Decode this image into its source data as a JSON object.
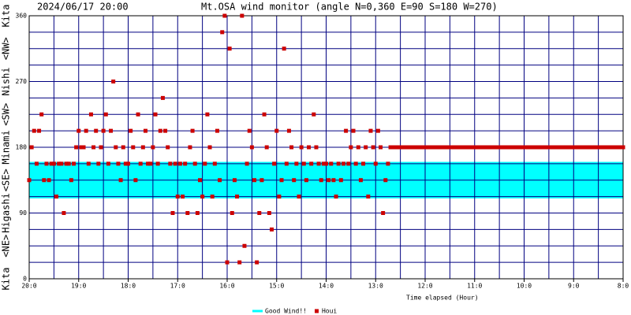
{
  "header": {
    "timestamp": "2024/06/17 20:00"
  },
  "chart_data": {
    "type": "scatter",
    "title": "Mt.OSA wind monitor (angle N=0,360 E=90 S=180 W=270)",
    "x_label": "Time elapsed (Hour)",
    "xlim": [
      0,
      720
    ],
    "xticks": [
      {
        "value": 0,
        "label": "20:0"
      },
      {
        "value": 60,
        "label": "19:0"
      },
      {
        "value": 120,
        "label": "18:0"
      },
      {
        "value": 180,
        "label": "17:0"
      },
      {
        "value": 240,
        "label": "16:0"
      },
      {
        "value": 300,
        "label": "15:0"
      },
      {
        "value": 360,
        "label": "14:0"
      },
      {
        "value": 420,
        "label": "13:0"
      },
      {
        "value": 480,
        "label": "12:0"
      },
      {
        "value": 540,
        "label": "11:0"
      },
      {
        "value": 600,
        "label": "10:0"
      },
      {
        "value": 660,
        "label": "9:0"
      },
      {
        "value": 720,
        "label": "8:0"
      }
    ],
    "ylim": [
      0,
      360
    ],
    "yticks": [
      0,
      90,
      180,
      270,
      360
    ],
    "direction_labels": [
      {
        "value": 0,
        "label": "Kita"
      },
      {
        "value": 45,
        "label": "<NE>"
      },
      {
        "value": 90,
        "label": "Higashi"
      },
      {
        "value": 135,
        "label": "<SE>"
      },
      {
        "value": 180,
        "label": "Minami"
      },
      {
        "value": 225,
        "label": "<SW>"
      },
      {
        "value": 270,
        "label": "Nishi"
      },
      {
        "value": 315,
        "label": "<NW>"
      },
      {
        "value": 360,
        "label": "Kita"
      }
    ],
    "grid": true,
    "bands": [
      {
        "name": "Good Wind!!",
        "color": "#00ffff",
        "from": 110,
        "to": 160
      }
    ],
    "x": [
      0,
      3,
      6,
      9,
      12,
      15,
      18,
      21,
      24,
      27,
      30,
      33,
      36,
      39,
      42,
      45,
      48,
      51,
      54,
      57,
      60,
      63,
      66,
      69,
      72,
      75,
      78,
      81,
      84,
      87,
      90,
      93,
      96,
      99,
      102,
      105,
      108,
      111,
      114,
      117,
      120,
      123,
      126,
      129,
      132,
      135,
      138,
      141,
      144,
      147,
      150,
      153,
      156,
      159,
      162,
      165,
      168,
      171,
      174,
      177,
      180,
      183,
      186,
      189,
      192,
      195,
      198,
      201,
      204,
      207,
      210,
      213,
      216,
      219,
      222,
      225,
      228,
      231,
      234,
      237,
      240,
      243,
      246,
      249,
      252,
      255,
      258,
      261,
      264,
      267,
      270,
      273,
      276,
      279,
      282,
      285,
      288,
      291,
      294,
      297,
      300,
      303,
      306,
      309,
      312,
      315,
      318,
      321,
      324,
      327,
      330,
      333,
      336,
      339,
      342,
      345,
      348,
      351,
      354,
      357,
      360,
      363,
      366,
      369,
      372,
      375,
      378,
      381,
      384,
      387,
      390,
      393,
      396,
      399,
      402,
      405,
      408,
      411,
      414,
      417,
      420,
      423,
      426,
      429,
      432,
      435,
      438,
      441,
      444,
      447,
      450,
      453,
      456,
      459,
      462,
      465,
      468,
      471,
      474,
      477,
      480,
      483,
      486,
      489,
      492,
      495,
      498,
      501,
      504,
      507,
      510,
      513,
      516,
      519,
      522,
      525,
      528,
      531,
      534,
      537,
      540,
      543,
      546,
      549,
      552,
      555,
      558,
      561,
      564,
      567,
      570,
      573,
      576,
      579,
      582,
      585,
      588,
      591,
      594,
      597,
      600,
      603,
      606,
      609,
      612,
      615,
      618,
      621,
      624,
      627,
      630,
      633,
      636,
      639,
      642,
      645,
      648,
      651,
      654,
      657,
      660,
      663,
      666,
      669,
      672,
      675,
      678,
      681,
      684,
      687,
      690,
      693,
      696,
      699,
      702,
      705,
      708,
      711,
      714,
      717,
      720
    ],
    "series": [
      {
        "name": "Houi",
        "color": "#cc0000",
        "values": [
          135,
          180,
          202.5,
          157.5,
          202.5,
          225,
          135,
          157.5,
          135,
          157.5,
          157.5,
          112.5,
          157.5,
          157.5,
          90,
          157.5,
          157.5,
          135,
          157.5,
          180,
          202.5,
          180,
          180,
          202.5,
          157.5,
          225,
          180,
          202.5,
          157.5,
          180,
          202.5,
          225,
          157.5,
          202.5,
          270,
          180,
          157.5,
          135,
          180,
          157.5,
          157.5,
          202.5,
          180,
          135,
          225,
          157.5,
          180,
          202.5,
          157.5,
          157.5,
          180,
          225,
          157.5,
          202.5,
          247.5,
          202.5,
          180,
          157.5,
          90,
          157.5,
          112.5,
          157.5,
          112.5,
          157.5,
          90,
          180,
          202.5,
          157.5,
          90,
          135,
          112.5,
          157.5,
          225,
          180,
          112.5,
          157.5,
          202.5,
          135,
          337.5,
          360,
          22.5,
          315,
          90,
          135,
          112.5,
          22.5,
          360,
          45,
          157.5,
          202.5,
          180,
          135,
          22.5,
          90,
          135,
          225,
          180,
          90,
          67.5,
          157.5,
          202.5,
          112.5,
          135,
          315,
          157.5,
          202.5,
          180,
          135,
          157.5,
          112.5,
          180,
          157.5,
          135,
          180,
          157.5,
          225,
          180,
          157.5,
          135,
          157.5,
          157.5,
          135,
          157.5,
          135,
          112.5,
          157.5,
          135,
          157.5,
          202.5,
          157.5,
          180,
          202.5,
          157.5,
          180,
          135,
          157.5,
          180,
          112.5,
          202.5,
          180,
          157.5,
          202.5,
          180,
          90,
          135,
          157.5,
          180,
          180,
          180,
          180,
          180,
          180,
          180,
          180,
          180,
          180,
          180,
          180,
          180,
          180,
          180,
          180,
          180,
          180,
          180,
          180,
          180,
          180,
          180,
          180,
          180,
          180,
          180,
          180,
          180,
          180,
          180,
          180,
          180,
          180,
          180,
          180,
          180,
          180,
          180,
          180,
          180,
          180,
          180,
          180,
          180,
          180,
          180,
          180,
          180,
          180,
          180,
          180,
          180,
          180,
          180,
          180,
          180,
          180,
          180,
          180,
          180,
          180,
          180,
          180,
          180,
          180,
          180,
          180,
          180,
          180,
          180,
          180,
          180,
          180,
          180,
          180,
          180,
          180,
          180,
          180,
          180,
          180,
          180,
          180,
          180,
          180,
          180,
          180,
          180,
          180,
          180,
          180,
          180,
          180,
          180
        ]
      }
    ]
  }
}
